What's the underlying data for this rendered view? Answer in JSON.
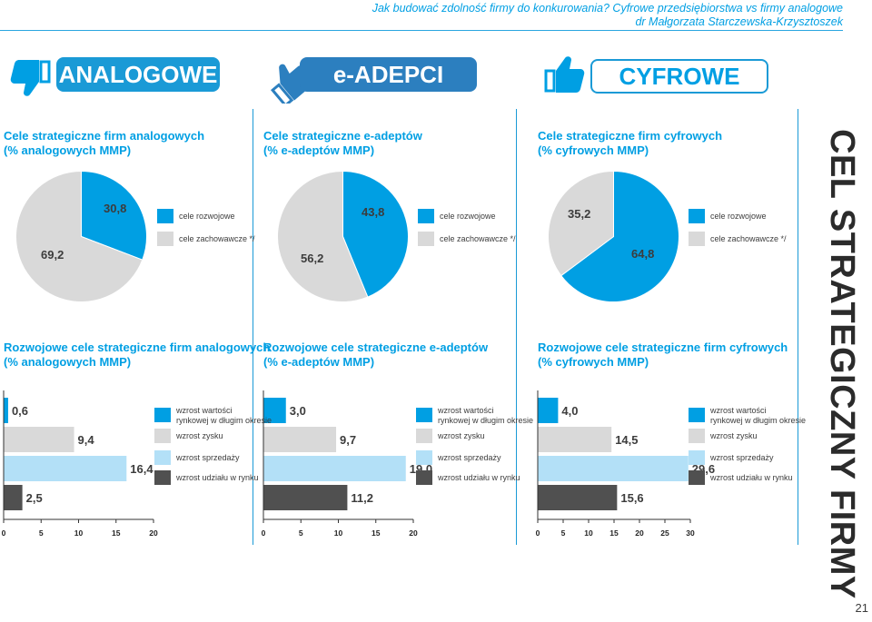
{
  "header": {
    "line1": "Jak budować zdolność firmy do konkurowania? Cyfrowe przedsiębiorstwa vs firmy analogowe",
    "line2": "dr Małgorzata Starczewska-Krzysztoszek"
  },
  "categories": {
    "analog": "ANALOGOWE",
    "eadept": "e-ADEPCI",
    "digital": "CYFROWE"
  },
  "colors": {
    "blue": "#009fe3",
    "gray": "#d9d9d9",
    "light_blue": "#b3e0f7",
    "dark": "#505050",
    "analog_pill": "#1a9ad6",
    "eadept_pill": "#2c7fbf",
    "digital_pill": "#ffffff"
  },
  "legend": {
    "pie": [
      "cele rozwojowe",
      "cele zachowawcze */"
    ],
    "bar": [
      "wzrost wartości\nrynkowej w długim okresie",
      "wzrost zysku",
      "wzrost sprzedaży",
      "wzrost udziału w rynku"
    ]
  },
  "sidebar_text": "CEL STRATEGICZNY FIRMY",
  "page_number": "21",
  "chart_data": [
    {
      "type": "pie",
      "title": "Cele strategiczne firm analogowych\n(% analogowych MMP)",
      "series": [
        {
          "name": "cele rozwojowe",
          "value": 30.8,
          "label": "30,8"
        },
        {
          "name": "cele zachowawcze */",
          "value": 69.2,
          "label": "69,2"
        }
      ]
    },
    {
      "type": "pie",
      "title": "Cele strategiczne e-adeptów\n(% e-adeptów MMP)",
      "series": [
        {
          "name": "cele rozwojowe",
          "value": 43.8,
          "label": "43,8"
        },
        {
          "name": "cele zachowawcze */",
          "value": 56.2,
          "label": "56,2"
        }
      ]
    },
    {
      "type": "pie",
      "title": "Cele strategiczne firm cyfrowych\n(% cyfrowych MMP)",
      "series": [
        {
          "name": "cele rozwojowe",
          "value": 64.8,
          "label": "64,8"
        },
        {
          "name": "cele zachowawcze */",
          "value": 35.2,
          "label": "35,2"
        }
      ]
    },
    {
      "type": "bar",
      "title": "Rozwojowe cele strategiczne firm analogowych\n(% analogowych MMP)",
      "xlim": [
        0,
        20
      ],
      "ticks": [
        "0",
        "5",
        "10",
        "15",
        "20"
      ],
      "categories": [
        "wzrost wartości rynkowej w długim okresie",
        "wzrost zysku",
        "wzrost sprzedaży",
        "wzrost udziału w rynku"
      ],
      "values": [
        0.6,
        9.4,
        16.4,
        2.5
      ],
      "labels": [
        "0,6",
        "9,4",
        "16,4",
        "2,5"
      ]
    },
    {
      "type": "bar",
      "title": "Rozwojowe cele strategiczne e-adeptów\n(% e-adeptów MMP)",
      "xlim": [
        0,
        20
      ],
      "ticks": [
        "0",
        "5",
        "10",
        "15",
        "20"
      ],
      "categories": [
        "wzrost wartości rynkowej w długim okresie",
        "wzrost zysku",
        "wzrost sprzedaży",
        "wzrost udziału w rynku"
      ],
      "values": [
        3.0,
        9.7,
        19.0,
        11.2
      ],
      "labels": [
        "3,0",
        "9,7",
        "19,0",
        "11,2"
      ]
    },
    {
      "type": "bar",
      "title": "Rozwojowe cele strategiczne firm cyfrowych\n(% cyfrowych MMP)",
      "xlim": [
        0,
        30
      ],
      "ticks": [
        "0",
        "5",
        "10",
        "15",
        "20",
        "25",
        "30"
      ],
      "categories": [
        "wzrost wartości rynkowej w długim okresie",
        "wzrost zysku",
        "wzrost sprzedaży",
        "wzrost udziału w rynku"
      ],
      "values": [
        4.0,
        14.5,
        29.6,
        15.6
      ],
      "labels": [
        "4,0",
        "14,5",
        "29,6",
        "15,6"
      ]
    }
  ]
}
